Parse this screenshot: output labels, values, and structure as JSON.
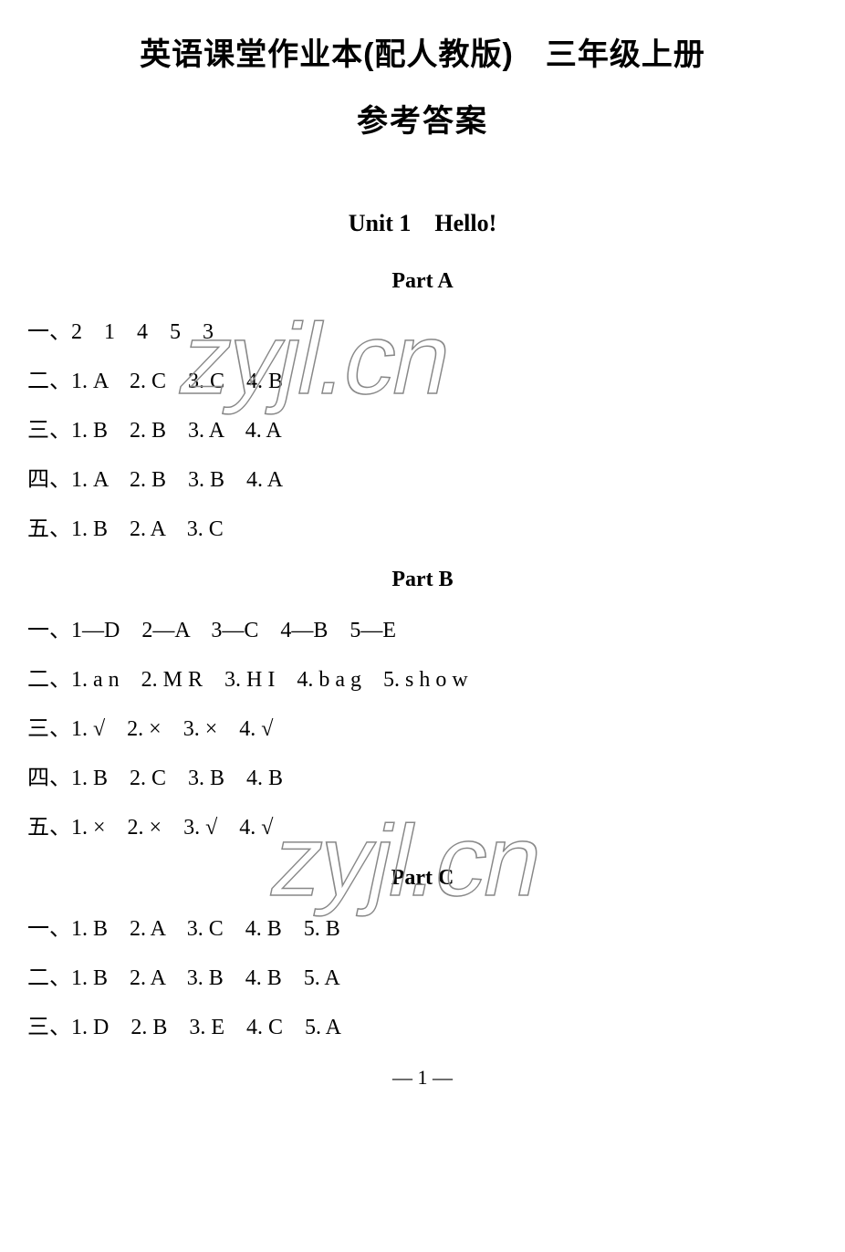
{
  "header": {
    "title_line1": "英语课堂作业本(配人教版)　三年级上册",
    "title_line2": "参考答案"
  },
  "unit": {
    "title": "Unit 1　Hello!"
  },
  "partA": {
    "title": "Part A",
    "lines": [
      "一、2　1　4　5　3",
      "二、1. A　2. C　3. C　4. B",
      "三、1. B　2. B　3. A　4. A",
      "四、1. A　2. B　3. B　4. A",
      "五、1. B　2. A　3. C"
    ]
  },
  "partB": {
    "title": "Part B",
    "lines": [
      "一、1—D　2—A　3—C　4—B　5—E",
      "二、1. a n　2. M R　3. H I　4. b a g　5. s h o w",
      "三、1. √　2. ×　3. ×　4. √",
      "四、1. B　2. C　3. B　4. B",
      "五、1. ×　2. ×　3. √　4. √"
    ]
  },
  "partC": {
    "title": "Part C",
    "lines": [
      "一、1. B　2. A　3. C　4. B　5. B",
      "二、1. B　2. A　3. B　4. B　5. A",
      "三、1. D　2. B　3. E　4. C　5. A"
    ]
  },
  "footer": {
    "page_number": "— 1 —"
  },
  "watermark": {
    "text": "zyjl.cn"
  },
  "style": {
    "background_color": "#ffffff",
    "text_color": "#000000",
    "watermark_stroke": "#888888",
    "title_fontsize": 34,
    "unit_title_fontsize": 26,
    "part_title_fontsize": 24,
    "body_fontsize": 24
  }
}
